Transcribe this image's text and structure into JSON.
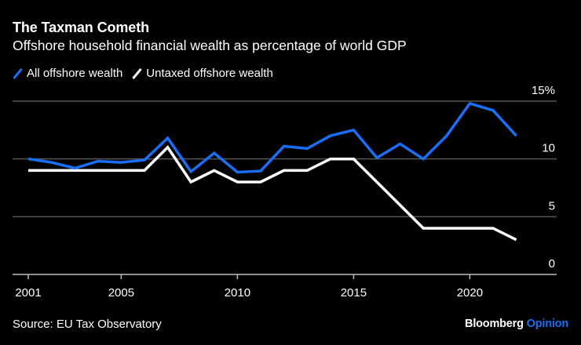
{
  "header": {
    "title": "The Taxman Cometh",
    "subtitle": "Offshore household financial wealth as percentage of world GDP"
  },
  "legend": [
    {
      "label": "All offshore wealth",
      "color": "#1a6ef5"
    },
    {
      "label": "Untaxed offshore wealth",
      "color": "#ffffff"
    }
  ],
  "footer": {
    "source": "Source: EU Tax Observatory",
    "brand_name": "Bloomberg",
    "brand_section": "Opinion",
    "brand_accent": "#1a6ef5"
  },
  "chart_data": {
    "type": "line",
    "title": "The Taxman Cometh",
    "subtitle": "Offshore household financial wealth as percentage of world GDP",
    "xlabel": "",
    "ylabel": "",
    "x": [
      2001,
      2002,
      2003,
      2004,
      2005,
      2006,
      2007,
      2008,
      2009,
      2010,
      2011,
      2012,
      2013,
      2014,
      2015,
      2016,
      2017,
      2018,
      2019,
      2020,
      2021,
      2022
    ],
    "series": [
      {
        "name": "All offshore wealth",
        "color": "#1a6ef5",
        "values": [
          10.0,
          9.7,
          9.2,
          9.8,
          9.7,
          9.9,
          11.8,
          8.9,
          10.5,
          8.85,
          8.95,
          11.1,
          10.9,
          12.0,
          12.5,
          10.1,
          11.3,
          10.0,
          12.0,
          14.8,
          14.2,
          12.0
        ]
      },
      {
        "name": "Untaxed offshore wealth",
        "color": "#ffffff",
        "values": [
          9.0,
          9.0,
          9.0,
          9.0,
          9.0,
          9.0,
          11.0,
          8.0,
          9.0,
          8.0,
          8.0,
          9.0,
          9.0,
          10.0,
          10.0,
          8.0,
          6.0,
          4.0,
          4.0,
          4.0,
          4.0,
          3.0
        ]
      }
    ],
    "xlim": [
      2000.3,
      2023.7
    ],
    "ylim": [
      0,
      15
    ],
    "x_ticks": [
      2001,
      2005,
      2010,
      2015,
      2020
    ],
    "x_tick_labels": [
      "2001",
      "2005",
      "2010",
      "2015",
      "2020"
    ],
    "y_ticks": [
      0,
      5,
      10,
      15
    ],
    "y_tick_labels": [
      "0",
      "5",
      "10",
      "15%"
    ],
    "grid": true,
    "y_axis_side": "right",
    "legend_position": "top-left"
  }
}
